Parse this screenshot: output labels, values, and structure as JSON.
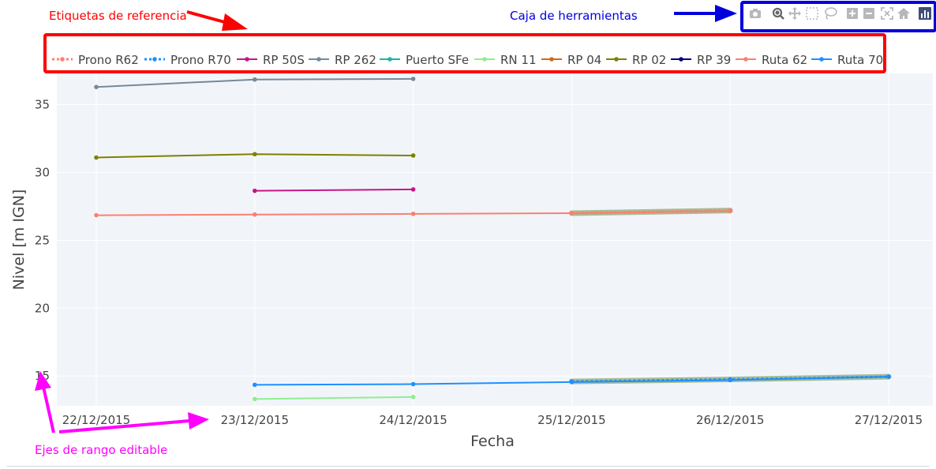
{
  "annotations": {
    "legend_note": "Etiquetas de referencia",
    "toolbar_note": "Caja de herramientas",
    "axes_note": "Ejes de rango editable",
    "colors": {
      "legend_note": "#ff0000",
      "toolbar_note": "#0000dd",
      "axes_note": "#ff00ff"
    }
  },
  "toolbar": {
    "buttons": [
      {
        "name": "camera-icon"
      },
      {
        "name": "zoom-icon"
      },
      {
        "name": "pan-icon"
      },
      {
        "name": "box-select-icon"
      },
      {
        "name": "lasso-select-icon"
      },
      {
        "name": "zoom-in-icon"
      },
      {
        "name": "zoom-out-icon"
      },
      {
        "name": "autoscale-icon"
      },
      {
        "name": "reset-axes-icon"
      },
      {
        "name": "plotly-logo-icon"
      }
    ]
  },
  "chart_data": {
    "type": "line",
    "xlabel": "Fecha",
    "ylabel": "Nivel [m IGN]",
    "x_ticks": [
      "22/12/2015",
      "23/12/2015",
      "24/12/2015",
      "25/12/2015",
      "26/12/2015",
      "27/12/2015"
    ],
    "xlim": [
      "22/12/2015",
      "27/12/2015"
    ],
    "ylim": [
      12.8,
      37.3
    ],
    "y_ticks": [
      15,
      20,
      25,
      30,
      35
    ],
    "grid": true,
    "legend_position": "top",
    "series": [
      {
        "name": "Prono R62",
        "color": "#fa8072",
        "dash": true,
        "band": true,
        "x": [
          "25/12/2015",
          "26/12/2015"
        ],
        "y": [
          27.0,
          27.2
        ]
      },
      {
        "name": "Prono R70",
        "color": "#1e90ff",
        "dash": true,
        "band": true,
        "x": [
          "25/12/2015",
          "26/12/2015",
          "27/12/2015"
        ],
        "y": [
          14.6,
          14.75,
          14.95
        ]
      },
      {
        "name": "RP 50S",
        "color": "#c71585",
        "x": [
          "23/12/2015",
          "24/12/2015"
        ],
        "y": [
          28.65,
          28.75
        ]
      },
      {
        "name": "RP 262",
        "color": "#778899",
        "x": [
          "22/12/2015",
          "23/12/2015",
          "24/12/2015"
        ],
        "y": [
          36.3,
          36.85,
          36.9
        ]
      },
      {
        "name": "Puerto SFe",
        "color": "#20b2aa",
        "x": [],
        "y": []
      },
      {
        "name": "RN 11",
        "color": "#90ee90",
        "x": [
          "23/12/2015",
          "24/12/2015"
        ],
        "y": [
          13.3,
          13.45
        ]
      },
      {
        "name": "RP 04",
        "color": "#d2691e",
        "x": [],
        "y": []
      },
      {
        "name": "RP 02",
        "color": "#808000",
        "x": [
          "22/12/2015",
          "23/12/2015",
          "24/12/2015"
        ],
        "y": [
          31.1,
          31.35,
          31.25
        ]
      },
      {
        "name": "RP 39",
        "color": "#000080",
        "x": [],
        "y": []
      },
      {
        "name": "Ruta 62",
        "color": "#fa8072",
        "x": [
          "22/12/2015",
          "23/12/2015",
          "24/12/2015",
          "25/12/2015",
          "26/12/2015"
        ],
        "y": [
          26.85,
          26.9,
          26.95,
          27.0,
          27.15
        ]
      },
      {
        "name": "Ruta 70",
        "color": "#1e90ff",
        "x": [
          "23/12/2015",
          "24/12/2015",
          "25/12/2015",
          "26/12/2015",
          "27/12/2015"
        ],
        "y": [
          14.35,
          14.4,
          14.55,
          14.7,
          14.95
        ]
      }
    ]
  }
}
